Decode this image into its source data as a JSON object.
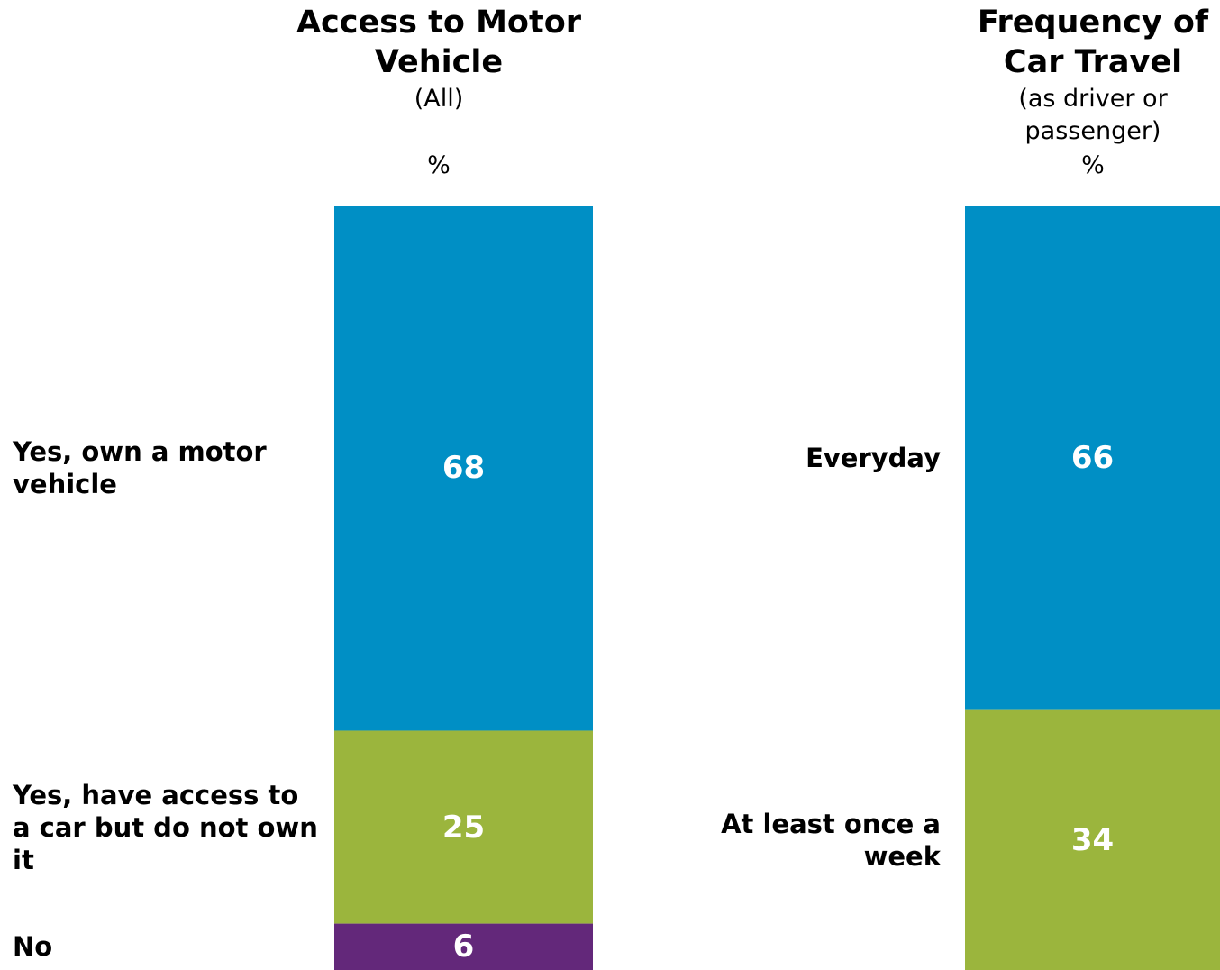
{
  "chart_data": [
    {
      "type": "stacked_bar",
      "title": "Access to Motor Vehicle",
      "subtitle": "(All)",
      "unit": "%",
      "series": [
        {
          "name": "Yes, own a motor vehicle",
          "color": "#008fc5",
          "values": [
            68
          ]
        },
        {
          "name": "Yes, have access to a car but do not own it",
          "color": "#9bb53d",
          "values": [
            25
          ]
        },
        {
          "name": "No",
          "color": "#63287a",
          "values": [
            6
          ]
        }
      ]
    },
    {
      "type": "stacked_bar",
      "title": "Frequency of Car Travel",
      "subtitle": "(as driver or passenger)",
      "unit": "%",
      "series": [
        {
          "name": "Everyday",
          "color": "#008fc5",
          "values": [
            66
          ]
        },
        {
          "name": "At least once a week",
          "color": "#9bb53d",
          "values": [
            34
          ]
        }
      ]
    }
  ]
}
